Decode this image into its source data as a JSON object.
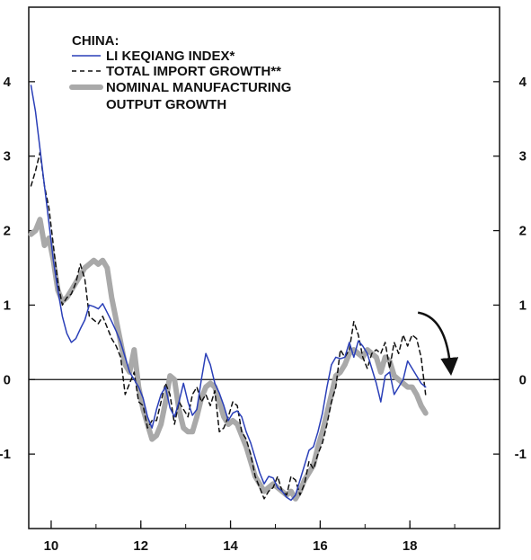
{
  "chart_data": {
    "type": "line",
    "title": "CHINA:",
    "xlabel": "",
    "ylabel": "",
    "xlim": [
      2009.5,
      2020
    ],
    "ylim": [
      -2,
      5
    ],
    "x_ticks": [
      {
        "value": 2010,
        "label": "10"
      },
      {
        "value": 2012,
        "label": "12"
      },
      {
        "value": 2014,
        "label": "14"
      },
      {
        "value": 2016,
        "label": "16"
      },
      {
        "value": 2018,
        "label": "18"
      }
    ],
    "y_ticks": [
      {
        "value": -1,
        "label": "-1"
      },
      {
        "value": 0,
        "label": "0"
      },
      {
        "value": 1,
        "label": "1"
      },
      {
        "value": 2,
        "label": "2"
      },
      {
        "value": 3,
        "label": "3"
      },
      {
        "value": 4,
        "label": "4"
      }
    ],
    "zero_line": true,
    "grid": false,
    "legend_placement": "top-left",
    "series": [
      {
        "name": "LI KEQIANG INDEX*",
        "style": "thin-solid",
        "color": "#2a3fb8",
        "points": [
          [
            2009.55,
            3.95
          ],
          [
            2009.65,
            3.6
          ],
          [
            2009.75,
            3.1
          ],
          [
            2009.85,
            2.6
          ],
          [
            2009.95,
            2.1
          ],
          [
            2010.05,
            1.6
          ],
          [
            2010.15,
            1.2
          ],
          [
            2010.25,
            0.85
          ],
          [
            2010.35,
            0.62
          ],
          [
            2010.45,
            0.5
          ],
          [
            2010.55,
            0.55
          ],
          [
            2010.65,
            0.68
          ],
          [
            2010.75,
            0.8
          ],
          [
            2010.85,
            1.0
          ],
          [
            2010.95,
            0.98
          ],
          [
            2011.05,
            0.95
          ],
          [
            2011.15,
            1.02
          ],
          [
            2011.25,
            0.9
          ],
          [
            2011.35,
            0.78
          ],
          [
            2011.45,
            0.65
          ],
          [
            2011.55,
            0.5
          ],
          [
            2011.65,
            0.3
          ],
          [
            2011.75,
            0.1
          ],
          [
            2011.85,
            0.0
          ],
          [
            2011.95,
            -0.1
          ],
          [
            2012.05,
            -0.25
          ],
          [
            2012.15,
            -0.5
          ],
          [
            2012.25,
            -0.65
          ],
          [
            2012.35,
            -0.4
          ],
          [
            2012.45,
            -0.2
          ],
          [
            2012.55,
            -0.1
          ],
          [
            2012.65,
            -0.38
          ],
          [
            2012.75,
            -0.5
          ],
          [
            2012.85,
            -0.3
          ],
          [
            2012.95,
            -0.05
          ],
          [
            2013.05,
            -0.3
          ],
          [
            2013.15,
            -0.48
          ],
          [
            2013.25,
            -0.4
          ],
          [
            2013.35,
            0.0
          ],
          [
            2013.45,
            0.35
          ],
          [
            2013.55,
            0.2
          ],
          [
            2013.65,
            -0.05
          ],
          [
            2013.75,
            -0.18
          ],
          [
            2013.85,
            -0.35
          ],
          [
            2013.95,
            -0.55
          ],
          [
            2014.05,
            -0.45
          ],
          [
            2014.15,
            -0.42
          ],
          [
            2014.25,
            -0.5
          ],
          [
            2014.35,
            -0.7
          ],
          [
            2014.45,
            -0.85
          ],
          [
            2014.55,
            -1.05
          ],
          [
            2014.65,
            -1.25
          ],
          [
            2014.75,
            -1.4
          ],
          [
            2014.85,
            -1.3
          ],
          [
            2014.95,
            -1.32
          ],
          [
            2015.05,
            -1.45
          ],
          [
            2015.15,
            -1.5
          ],
          [
            2015.25,
            -1.58
          ],
          [
            2015.35,
            -1.62
          ],
          [
            2015.45,
            -1.55
          ],
          [
            2015.55,
            -1.35
          ],
          [
            2015.65,
            -1.15
          ],
          [
            2015.75,
            -0.95
          ],
          [
            2015.85,
            -0.9
          ],
          [
            2015.95,
            -0.7
          ],
          [
            2016.05,
            -0.45
          ],
          [
            2016.15,
            -0.1
          ],
          [
            2016.25,
            0.2
          ],
          [
            2016.35,
            0.3
          ],
          [
            2016.45,
            0.28
          ],
          [
            2016.55,
            0.3
          ],
          [
            2016.65,
            0.5
          ],
          [
            2016.75,
            0.3
          ],
          [
            2016.85,
            0.52
          ],
          [
            2016.95,
            0.45
          ],
          [
            2017.05,
            0.35
          ],
          [
            2017.15,
            0.15
          ],
          [
            2017.25,
            -0.05
          ],
          [
            2017.35,
            -0.3
          ],
          [
            2017.45,
            0.05
          ],
          [
            2017.55,
            0.1
          ],
          [
            2017.65,
            -0.2
          ],
          [
            2017.75,
            -0.1
          ],
          [
            2017.85,
            0.0
          ],
          [
            2017.95,
            0.25
          ],
          [
            2018.05,
            0.15
          ],
          [
            2018.15,
            0.05
          ],
          [
            2018.25,
            -0.05
          ],
          [
            2018.35,
            -0.1
          ]
        ]
      },
      {
        "name": "TOTAL IMPORT GROWTH**",
        "style": "dashed",
        "color": "#111111",
        "points": [
          [
            2009.55,
            2.6
          ],
          [
            2009.65,
            2.8
          ],
          [
            2009.75,
            3.05
          ],
          [
            2009.85,
            2.6
          ],
          [
            2009.95,
            2.3
          ],
          [
            2010.05,
            1.8
          ],
          [
            2010.15,
            1.3
          ],
          [
            2010.25,
            1.0
          ],
          [
            2010.35,
            1.1
          ],
          [
            2010.45,
            1.15
          ],
          [
            2010.55,
            1.3
          ],
          [
            2010.65,
            1.55
          ],
          [
            2010.75,
            1.35
          ],
          [
            2010.85,
            0.85
          ],
          [
            2010.95,
            0.8
          ],
          [
            2011.05,
            0.75
          ],
          [
            2011.15,
            0.85
          ],
          [
            2011.25,
            0.7
          ],
          [
            2011.35,
            0.55
          ],
          [
            2011.45,
            0.45
          ],
          [
            2011.55,
            0.3
          ],
          [
            2011.65,
            -0.2
          ],
          [
            2011.75,
            -0.05
          ],
          [
            2011.85,
            0.1
          ],
          [
            2011.95,
            -0.3
          ],
          [
            2012.05,
            -0.35
          ],
          [
            2012.15,
            -0.65
          ],
          [
            2012.25,
            -0.55
          ],
          [
            2012.35,
            -0.55
          ],
          [
            2012.45,
            -0.3
          ],
          [
            2012.55,
            -0.05
          ],
          [
            2012.65,
            -0.2
          ],
          [
            2012.75,
            -0.6
          ],
          [
            2012.85,
            -0.3
          ],
          [
            2012.95,
            -0.4
          ],
          [
            2013.05,
            -0.5
          ],
          [
            2013.15,
            -0.2
          ],
          [
            2013.25,
            -0.1
          ],
          [
            2013.35,
            -0.3
          ],
          [
            2013.45,
            -0.2
          ],
          [
            2013.55,
            -0.35
          ],
          [
            2013.65,
            -0.15
          ],
          [
            2013.75,
            -0.7
          ],
          [
            2013.85,
            -0.65
          ],
          [
            2013.95,
            -0.5
          ],
          [
            2014.05,
            -0.3
          ],
          [
            2014.15,
            -0.35
          ],
          [
            2014.25,
            -0.7
          ],
          [
            2014.35,
            -0.8
          ],
          [
            2014.45,
            -1.0
          ],
          [
            2014.55,
            -1.3
          ],
          [
            2014.65,
            -1.45
          ],
          [
            2014.75,
            -1.6
          ],
          [
            2014.85,
            -1.5
          ],
          [
            2014.95,
            -1.45
          ],
          [
            2015.05,
            -1.3
          ],
          [
            2015.15,
            -1.5
          ],
          [
            2015.25,
            -1.55
          ],
          [
            2015.35,
            -1.3
          ],
          [
            2015.45,
            -1.35
          ],
          [
            2015.55,
            -1.55
          ],
          [
            2015.65,
            -1.4
          ],
          [
            2015.75,
            -1.1
          ],
          [
            2015.85,
            -1.2
          ],
          [
            2015.95,
            -1.0
          ],
          [
            2016.05,
            -0.85
          ],
          [
            2016.15,
            -0.6
          ],
          [
            2016.25,
            -0.3
          ],
          [
            2016.35,
            -0.1
          ],
          [
            2016.45,
            0.4
          ],
          [
            2016.55,
            0.3
          ],
          [
            2016.65,
            0.4
          ],
          [
            2016.75,
            0.78
          ],
          [
            2016.85,
            0.6
          ],
          [
            2016.95,
            0.3
          ],
          [
            2017.05,
            0.15
          ],
          [
            2017.15,
            0.35
          ],
          [
            2017.25,
            0.4
          ],
          [
            2017.35,
            0.35
          ],
          [
            2017.45,
            0.5
          ],
          [
            2017.55,
            0.15
          ],
          [
            2017.65,
            0.5
          ],
          [
            2017.75,
            0.35
          ],
          [
            2017.85,
            0.6
          ],
          [
            2017.95,
            0.45
          ],
          [
            2018.05,
            0.6
          ],
          [
            2018.15,
            0.55
          ],
          [
            2018.25,
            0.3
          ],
          [
            2018.35,
            -0.2
          ]
        ]
      },
      {
        "name": "NOMINAL MANUFACTURING OUTPUT GROWTH",
        "style": "thick-solid",
        "color": "#a9a9a9",
        "points": [
          [
            2009.55,
            1.95
          ],
          [
            2009.65,
            2.0
          ],
          [
            2009.75,
            2.15
          ],
          [
            2009.85,
            1.8
          ],
          [
            2009.95,
            1.9
          ],
          [
            2010.05,
            1.6
          ],
          [
            2010.15,
            1.2
          ],
          [
            2010.25,
            1.05
          ],
          [
            2010.35,
            1.1
          ],
          [
            2010.45,
            1.2
          ],
          [
            2010.55,
            1.3
          ],
          [
            2010.65,
            1.4
          ],
          [
            2010.75,
            1.5
          ],
          [
            2010.85,
            1.55
          ],
          [
            2010.95,
            1.6
          ],
          [
            2011.05,
            1.55
          ],
          [
            2011.15,
            1.6
          ],
          [
            2011.25,
            1.5
          ],
          [
            2011.35,
            1.1
          ],
          [
            2011.45,
            0.8
          ],
          [
            2011.55,
            0.5
          ],
          [
            2011.65,
            0.2
          ],
          [
            2011.75,
            0.1
          ],
          [
            2011.85,
            0.4
          ],
          [
            2011.95,
            -0.1
          ],
          [
            2012.05,
            -0.4
          ],
          [
            2012.15,
            -0.6
          ],
          [
            2012.25,
            -0.8
          ],
          [
            2012.35,
            -0.75
          ],
          [
            2012.45,
            -0.6
          ],
          [
            2012.55,
            -0.3
          ],
          [
            2012.65,
            0.05
          ],
          [
            2012.75,
            0.0
          ],
          [
            2012.85,
            -0.4
          ],
          [
            2012.95,
            -0.65
          ],
          [
            2013.05,
            -0.7
          ],
          [
            2013.15,
            -0.7
          ],
          [
            2013.25,
            -0.5
          ],
          [
            2013.35,
            -0.25
          ],
          [
            2013.45,
            -0.1
          ],
          [
            2013.55,
            -0.05
          ],
          [
            2013.65,
            -0.1
          ],
          [
            2013.75,
            -0.3
          ],
          [
            2013.85,
            -0.5
          ],
          [
            2013.95,
            -0.6
          ],
          [
            2014.05,
            -0.55
          ],
          [
            2014.15,
            -0.6
          ],
          [
            2014.25,
            -0.75
          ],
          [
            2014.35,
            -0.9
          ],
          [
            2014.45,
            -1.1
          ],
          [
            2014.55,
            -1.3
          ],
          [
            2014.65,
            -1.4
          ],
          [
            2014.75,
            -1.5
          ],
          [
            2014.85,
            -1.45
          ],
          [
            2014.95,
            -1.4
          ],
          [
            2015.05,
            -1.45
          ],
          [
            2015.15,
            -1.5
          ],
          [
            2015.25,
            -1.55
          ],
          [
            2015.35,
            -1.5
          ],
          [
            2015.45,
            -1.6
          ],
          [
            2015.55,
            -1.5
          ],
          [
            2015.65,
            -1.35
          ],
          [
            2015.75,
            -1.25
          ],
          [
            2015.85,
            -1.15
          ],
          [
            2015.95,
            -0.9
          ],
          [
            2016.05,
            -0.7
          ],
          [
            2016.15,
            -0.45
          ],
          [
            2016.25,
            -0.2
          ],
          [
            2016.35,
            0.05
          ],
          [
            2016.45,
            0.1
          ],
          [
            2016.55,
            0.2
          ],
          [
            2016.65,
            0.35
          ],
          [
            2016.75,
            0.4
          ],
          [
            2016.85,
            0.35
          ],
          [
            2016.95,
            0.3
          ],
          [
            2017.05,
            0.4
          ],
          [
            2017.15,
            0.35
          ],
          [
            2017.25,
            0.3
          ],
          [
            2017.35,
            0.1
          ],
          [
            2017.45,
            0.3
          ],
          [
            2017.55,
            0.25
          ],
          [
            2017.65,
            0.05
          ],
          [
            2017.75,
            0.0
          ],
          [
            2017.85,
            -0.05
          ],
          [
            2017.95,
            -0.1
          ],
          [
            2018.05,
            -0.1
          ],
          [
            2018.15,
            -0.2
          ],
          [
            2018.25,
            -0.35
          ],
          [
            2018.35,
            -0.45
          ]
        ]
      }
    ],
    "annotations": [
      {
        "type": "curved-arrow",
        "direction": "down",
        "near_x": 2018.2,
        "from_y": 0.9,
        "to_y": 0.1
      }
    ]
  }
}
